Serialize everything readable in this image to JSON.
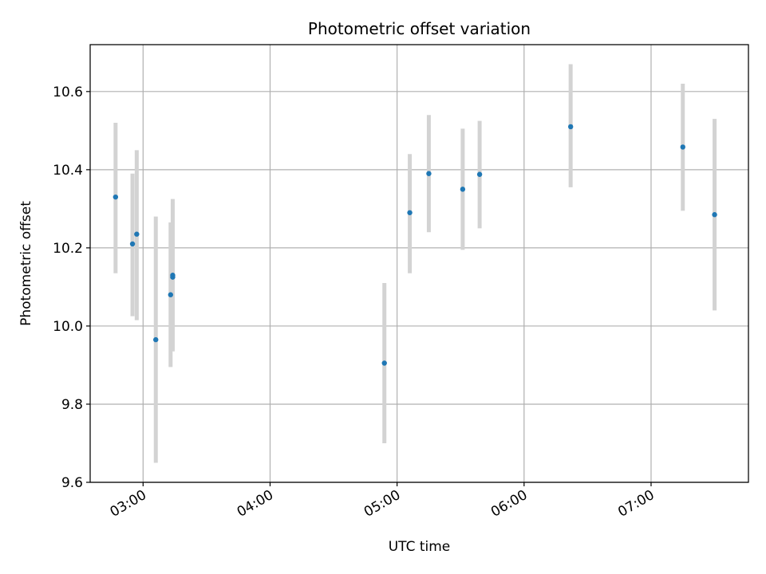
{
  "chart_data": {
    "type": "scatter",
    "title": "Photometric offset variation",
    "xlabel": "UTC time",
    "ylabel": "Photometric offset",
    "x_ticks": [
      "03:00",
      "04:00",
      "05:00",
      "06:00",
      "07:00"
    ],
    "y_ticks": [
      "9.6",
      "9.8",
      "10.0",
      "10.2",
      "10.4",
      "10.6"
    ],
    "xlim": [
      "02:35",
      "07:46"
    ],
    "ylim": [
      9.6,
      10.72
    ],
    "grid": true,
    "colors": {
      "point": "#1f77b4",
      "errorbar": "#d3d3d3",
      "grid": "#b0b0b0",
      "axes": "#000000"
    },
    "points": [
      {
        "x": "02:47",
        "y": 10.33,
        "yerr_low": 10.135,
        "yerr_high": 10.52
      },
      {
        "x": "02:55",
        "y": 10.21,
        "yerr_low": 10.025,
        "yerr_high": 10.39
      },
      {
        "x": "02:57",
        "y": 10.235,
        "yerr_low": 10.015,
        "yerr_high": 10.45
      },
      {
        "x": "03:06",
        "y": 9.965,
        "yerr_low": 9.65,
        "yerr_high": 10.28
      },
      {
        "x": "03:13",
        "y": 10.08,
        "yerr_low": 9.895,
        "yerr_high": 10.265
      },
      {
        "x": "03:14",
        "y": 10.13,
        "yerr_low": 9.935,
        "yerr_high": 10.325
      },
      {
        "x": "03:14",
        "y": 10.125,
        "yerr_low": 9.94,
        "yerr_high": 10.315
      },
      {
        "x": "04:54",
        "y": 9.905,
        "yerr_low": 9.7,
        "yerr_high": 10.11
      },
      {
        "x": "05:06",
        "y": 10.29,
        "yerr_low": 10.135,
        "yerr_high": 10.44
      },
      {
        "x": "05:15",
        "y": 10.39,
        "yerr_low": 10.24,
        "yerr_high": 10.54
      },
      {
        "x": "05:31",
        "y": 10.35,
        "yerr_low": 10.195,
        "yerr_high": 10.505
      },
      {
        "x": "05:39",
        "y": 10.388,
        "yerr_low": 10.25,
        "yerr_high": 10.525
      },
      {
        "x": "06:22",
        "y": 10.51,
        "yerr_low": 10.355,
        "yerr_high": 10.67
      },
      {
        "x": "07:15",
        "y": 10.458,
        "yerr_low": 10.295,
        "yerr_high": 10.62
      },
      {
        "x": "07:30",
        "y": 10.285,
        "yerr_low": 10.04,
        "yerr_high": 10.53
      }
    ]
  }
}
